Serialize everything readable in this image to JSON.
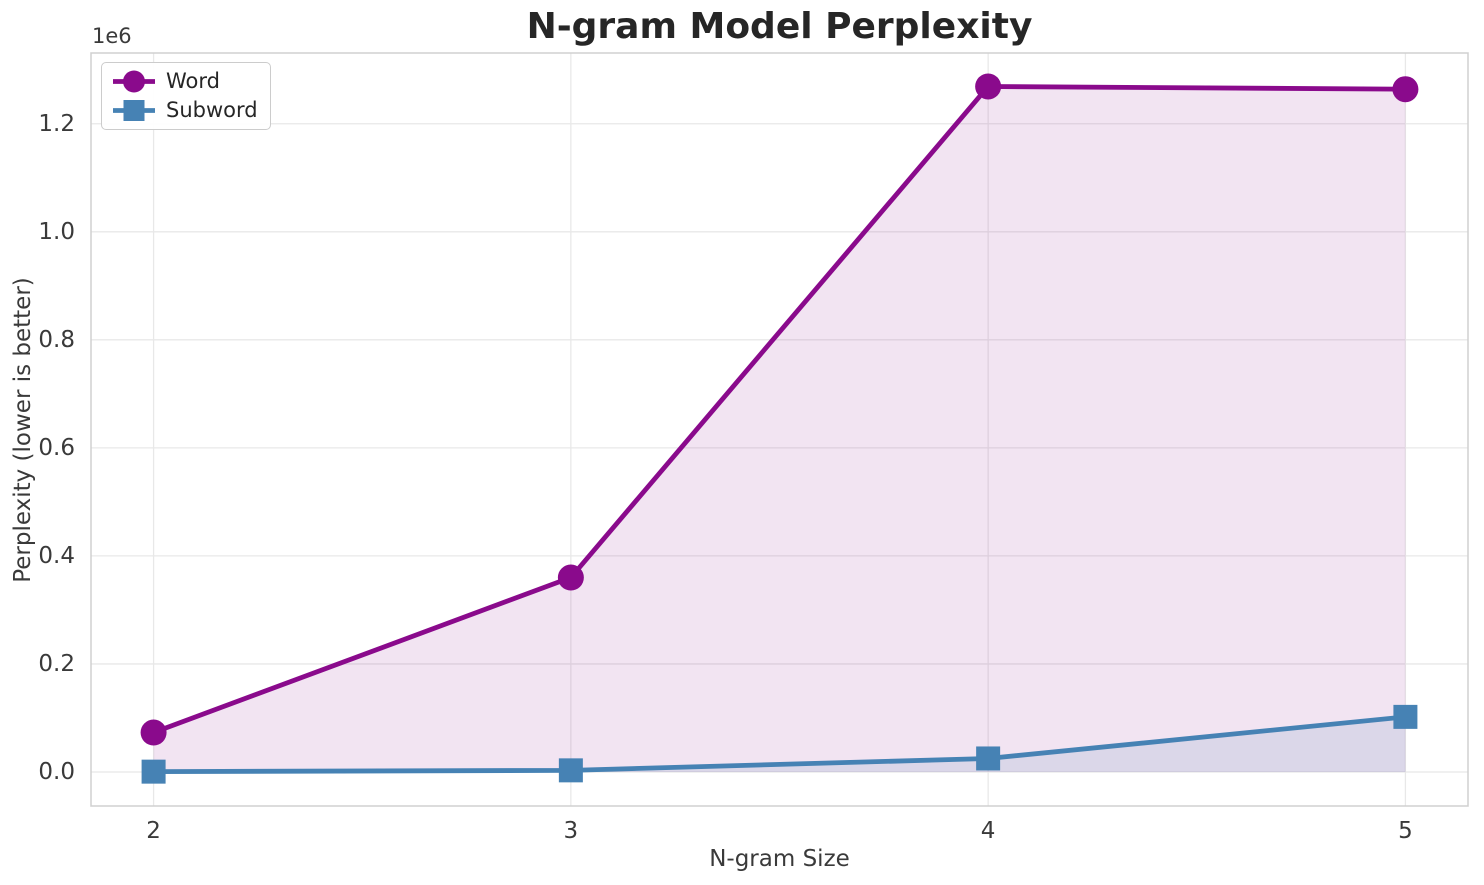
{
  "chart_data": {
    "type": "line",
    "title": "N-gram Model Perplexity",
    "xlabel": "N-gram Size",
    "ylabel": "Perplexity (lower is better)",
    "y_offset_text": "1e6",
    "x": [
      2,
      3,
      4,
      5
    ],
    "series": [
      {
        "name": "Word",
        "marker": "circle",
        "color": "#8A0A8C",
        "fill_color": "rgba(139,10,140,0.11)",
        "values": [
          73000,
          360000,
          1269000,
          1264000
        ]
      },
      {
        "name": "Subword",
        "marker": "square",
        "color": "#4682B4",
        "fill_color": "rgba(70,130,180,0.13)",
        "values": [
          600,
          3000,
          25000,
          102000
        ]
      }
    ],
    "xlim": [
      1.85,
      5.15
    ],
    "ylim": [
      -63000,
      1331000
    ],
    "xticks": [
      2,
      3,
      4,
      5
    ],
    "xtick_labels": [
      "2",
      "3",
      "4",
      "5"
    ],
    "yticks": [
      0,
      200000,
      400000,
      600000,
      800000,
      1000000,
      1200000
    ],
    "ytick_labels": [
      "0.0",
      "0.2",
      "0.4",
      "0.6",
      "0.8",
      "1.0",
      "1.2"
    ],
    "grid": true,
    "fill_to_zero": true,
    "legend_position": "upper left"
  },
  "style": {
    "background": "#ffffff",
    "grid_color": "#e8e8e8",
    "spine_color": "#d0d0d0",
    "tick_color": "#3a3a3a",
    "title_color": "#262626",
    "line_width": 4.8,
    "marker_circle_radius": 13,
    "marker_square_size": 24
  },
  "legend": {
    "items": [
      {
        "label": "Word"
      },
      {
        "label": "Subword"
      }
    ]
  }
}
